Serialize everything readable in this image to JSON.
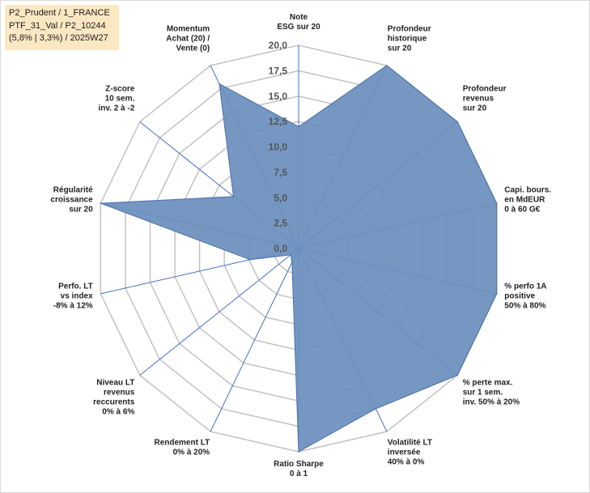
{
  "info_box": {
    "line1": "P2_Prudent / 1_FRANCE",
    "line2": "PTF_31_Val / P2_10244",
    "line3": "(5,8% | 3,3%) / 2025W27"
  },
  "chart_data": {
    "type": "radar",
    "rmin": 0,
    "rmax": 20,
    "ticks": [
      0,
      2.5,
      5,
      7.5,
      10,
      12.5,
      15,
      17.5,
      20
    ],
    "tick_labels": [
      "0,0",
      "2,5",
      "5,0",
      "7,5",
      "10,0",
      "12,5",
      "15,0",
      "17,5",
      "20,0"
    ],
    "gridline_color": "#bfbfbf",
    "spoke_color": "#4472c4",
    "fill_color": "#6a8fbd",
    "stroke_color": "#4a6fa8",
    "axes": [
      [
        "Note",
        "ESG sur 20"
      ],
      [
        "Profondeur",
        "historique",
        "sur 20"
      ],
      [
        "Profondeur",
        "revenus",
        "sur 20"
      ],
      [
        "Capi. bours.",
        "en MdEUR",
        "0 à 60 G€"
      ],
      [
        "% perfo 1A",
        "positive",
        "50% à 80%"
      ],
      [
        "% perte max.",
        "sur 1 sem.",
        "inv. 50% à 20%"
      ],
      [
        "Volatilité LT",
        "inversée",
        "40% à 0%"
      ],
      [
        "Ratio Sharpe",
        "0 à 1"
      ],
      [
        "Rendement LT",
        "0% à 20%"
      ],
      [
        "Niveau LT",
        "revenus",
        "reccurents",
        "0% à 6%"
      ],
      [
        "Perfo. LT",
        "vs index",
        "-8% à 12%"
      ],
      [
        "Régularité",
        "croissance",
        "sur 20"
      ],
      [
        "Z-score",
        "10 sem.",
        "inv. 2 à -2"
      ],
      [
        "Momentum",
        "Achat (20) /",
        "Vente (0)"
      ]
    ],
    "values": [
      12,
      20,
      20,
      20,
      20,
      20,
      17.5,
      20,
      1.5,
      1,
      4.9,
      20,
      8.2,
      18
    ]
  }
}
